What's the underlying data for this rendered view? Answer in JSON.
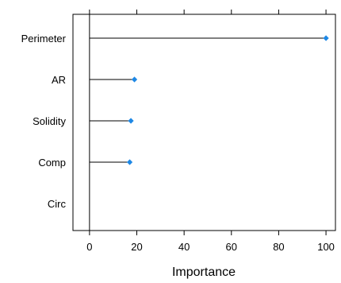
{
  "chart_data": {
    "type": "lollipop",
    "orientation": "horizontal",
    "categories": [
      "Perimeter",
      "AR",
      "Solidity",
      "Comp",
      "Circ"
    ],
    "values": [
      100,
      19,
      17.5,
      17,
      0
    ],
    "xlabel": "Importance",
    "ylabel": "",
    "xlim": [
      -7,
      104
    ],
    "xticks": [
      0,
      20,
      40,
      60,
      80,
      100
    ],
    "grid": false,
    "marker_color": "#1E88E5",
    "line_color": "#000000"
  }
}
